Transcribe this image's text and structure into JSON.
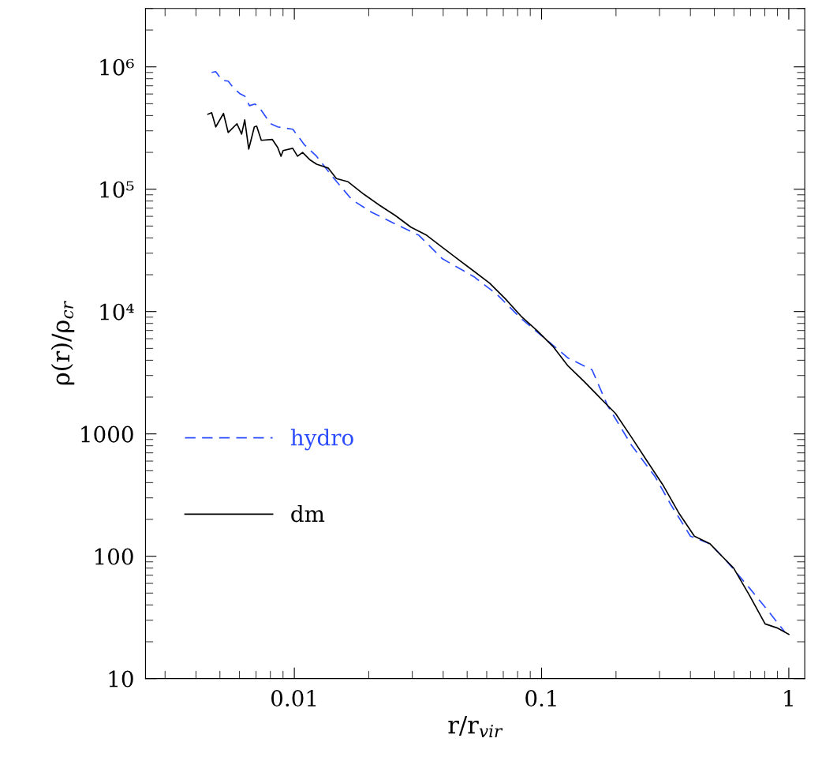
{
  "chart_data": {
    "type": "line",
    "xlabel": "r/r$_{vir}$",
    "ylabel": "ρ(r)/ρ$_{cr}$",
    "log": "xy",
    "grid": false,
    "legend": "left",
    "marker": "none",
    "xlim": [
      0.0025,
      1.16
    ],
    "xticks": [
      0.01,
      0.1,
      1
    ],
    "ylim": [
      10,
      3000000
    ],
    "yticks": [
      10,
      100,
      1000,
      {
        "value": 10000,
        "label": "10⁴"
      },
      {
        "value": 100000,
        "label": "10⁵"
      },
      {
        "value": 1000000,
        "label": "10⁶"
      }
    ],
    "series": [
      {
        "name": "hydro",
        "color": "#2b4cff",
        "line_style": "dashed",
        "x": [
          0.00463,
          0.00481,
          0.0051,
          0.0054,
          0.00565,
          0.00603,
          0.0063,
          0.00658,
          0.00693,
          0.00724,
          0.00802,
          0.00857,
          0.00901,
          0.00986,
          0.011,
          0.0123,
          0.0142,
          0.0171,
          0.0205,
          0.0256,
          0.0319,
          0.0397,
          0.0532,
          0.0663,
          0.0826,
          0.103,
          0.128,
          0.16,
          0.185,
          0.231,
          0.288,
          0.333,
          0.4,
          0.481,
          0.556,
          0.693,
          0.832,
          0.964
        ],
        "values": [
          900000,
          914000,
          777000,
          765000,
          679000,
          603000,
          577000,
          482000,
          497000,
          461000,
          343000,
          323000,
          318000,
          309000,
          230000,
          186000,
          128000,
          82000,
          65000,
          52000,
          42000,
          27000,
          19300,
          13700,
          8770,
          6040,
          4170,
          3340,
          1700,
          809,
          446,
          265,
          146,
          126,
          93,
          55,
          35,
          24
        ]
      },
      {
        "name": "dm",
        "color": "#000000",
        "line_style": "solid",
        "x": [
          0.00447,
          0.00463,
          0.00481,
          0.00517,
          0.0054,
          0.00586,
          0.00612,
          0.0063,
          0.00654,
          0.00689,
          0.00704,
          0.00735,
          0.00815,
          0.00857,
          0.00883,
          0.00901,
          0.00985,
          0.0103,
          0.0108,
          0.0116,
          0.0123,
          0.0137,
          0.0148,
          0.0165,
          0.0191,
          0.0221,
          0.0256,
          0.0296,
          0.0343,
          0.0397,
          0.0459,
          0.0532,
          0.0616,
          0.0714,
          0.0826,
          0.0957,
          0.111,
          0.128,
          0.149,
          0.172,
          0.199,
          0.231,
          0.267,
          0.309,
          0.358,
          0.415,
          0.481,
          0.517,
          0.598,
          0.693,
          0.802,
          0.895,
          1.0
        ],
        "values": [
          410000,
          422000,
          323000,
          416000,
          291000,
          343000,
          282000,
          369000,
          213000,
          323000,
          328000,
          251000,
          255000,
          219000,
          186000,
          207000,
          216000,
          186000,
          200000,
          173000,
          160000,
          149000,
          122000,
          115000,
          91000,
          74000,
          61000,
          49000,
          42000,
          33500,
          26800,
          21400,
          17100,
          12700,
          9170,
          7010,
          5210,
          3590,
          2670,
          1980,
          1470,
          940,
          601,
          385,
          228,
          146,
          126,
          108,
          80,
          48,
          28,
          26,
          23
        ]
      }
    ]
  }
}
